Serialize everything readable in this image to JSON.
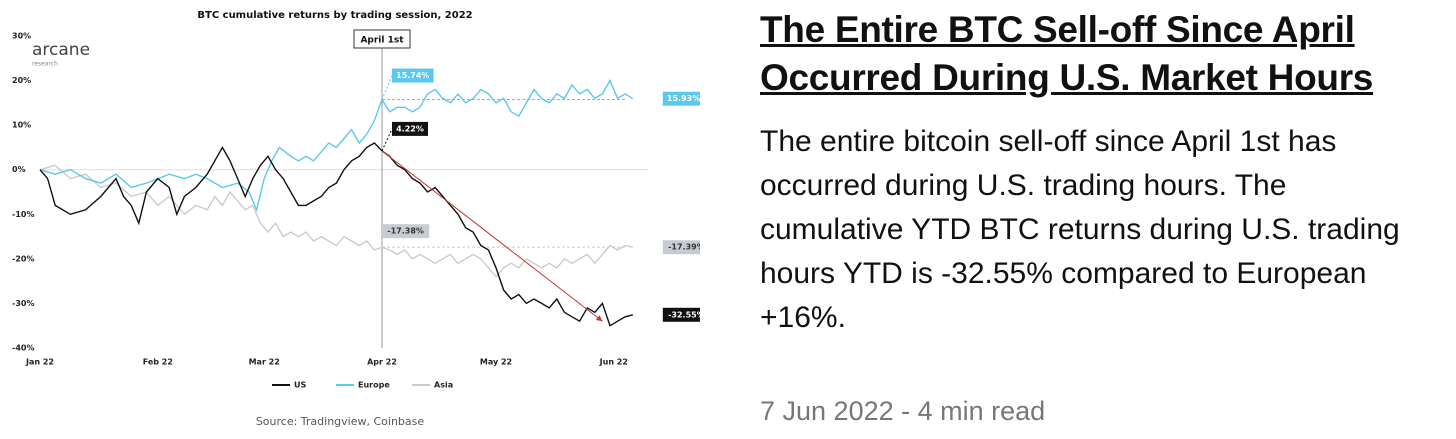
{
  "chart_data": {
    "type": "line",
    "title": "BTC cumulative returns by trading session, 2022",
    "logo": "arcane",
    "logo_subtitle": "research",
    "source": "Source: Tradingview, Coinbase",
    "xlim": [
      0,
      160
    ],
    "xticks": [
      {
        "value": 0,
        "label": "Jan 22"
      },
      {
        "value": 31,
        "label": "Feb 22"
      },
      {
        "value": 59,
        "label": "Mar 22"
      },
      {
        "value": 90,
        "label": "Apr 22"
      },
      {
        "value": 120,
        "label": "May 22"
      },
      {
        "value": 151,
        "label": "Jun 22"
      }
    ],
    "ylim": [
      -40,
      30
    ],
    "yticks": [
      {
        "value": -40,
        "label": "-40%"
      },
      {
        "value": -30,
        "label": "-30%"
      },
      {
        "value": -20,
        "label": "-20%"
      },
      {
        "value": -10,
        "label": "-10%"
      },
      {
        "value": 0,
        "label": "0%"
      },
      {
        "value": 10,
        "label": "10%"
      },
      {
        "value": 20,
        "label": "20%"
      },
      {
        "value": 30,
        "label": "30%"
      }
    ],
    "grid": false,
    "series": [
      {
        "name": "US",
        "color": "#111111",
        "x": [
          0,
          2,
          4,
          8,
          12,
          16,
          18,
          20,
          22,
          24,
          26,
          28,
          31,
          34,
          36,
          38,
          41,
          44,
          46,
          48,
          50,
          52,
          54,
          56,
          58,
          60,
          62,
          64,
          66,
          68,
          70,
          72,
          74,
          76,
          78,
          80,
          82,
          84,
          86,
          88,
          90,
          92,
          94,
          96,
          98,
          100,
          102,
          104,
          106,
          108,
          110,
          112,
          114,
          116,
          118,
          120,
          122,
          124,
          126,
          128,
          130,
          132,
          134,
          136,
          138,
          140,
          142,
          144,
          146,
          148,
          150,
          152,
          154,
          156
        ],
        "values": [
          0,
          -2,
          -8,
          -10,
          -9,
          -6,
          -4,
          -2,
          -6,
          -8,
          -12,
          -5,
          -2,
          -4,
          -10,
          -6,
          -4,
          -1,
          2,
          5,
          2,
          -2,
          -6,
          -2,
          1,
          3,
          0,
          -2,
          -5,
          -8,
          -8,
          -7,
          -6,
          -4,
          -3,
          0,
          2,
          3,
          5,
          6,
          4.22,
          3,
          1,
          0,
          -2,
          -3,
          -5,
          -4,
          -6,
          -8,
          -10,
          -13,
          -14,
          -17,
          -18,
          -22,
          -27,
          -29,
          -28,
          -30,
          -29,
          -30,
          -31,
          -29,
          -32,
          -33,
          -34,
          -31,
          -32,
          -30,
          -35,
          -34,
          -33,
          -32.55
        ]
      },
      {
        "name": "Europe",
        "color": "#5bc8ef",
        "x": [
          0,
          4,
          8,
          12,
          16,
          20,
          24,
          28,
          31,
          34,
          38,
          41,
          44,
          48,
          52,
          55,
          57,
          59,
          61,
          63,
          66,
          68,
          70,
          72,
          74,
          76,
          78,
          80,
          82,
          84,
          86,
          88,
          90,
          92,
          94,
          96,
          98,
          100,
          102,
          104,
          106,
          108,
          110,
          112,
          114,
          116,
          118,
          120,
          122,
          124,
          126,
          128,
          130,
          132,
          134,
          136,
          138,
          140,
          142,
          144,
          146,
          148,
          150,
          152,
          154,
          156
        ],
        "values": [
          0,
          -1,
          0,
          -2,
          -3,
          -1,
          -4,
          -3,
          -2,
          -1,
          -2,
          -1,
          -2,
          -4,
          -3,
          -5,
          -9,
          -2,
          2,
          5,
          3,
          2,
          3,
          2,
          4,
          6,
          5,
          7,
          9,
          6,
          8,
          11,
          15.74,
          13,
          14,
          14,
          13,
          14,
          17,
          18,
          16,
          15,
          17,
          15,
          16,
          18,
          17,
          15,
          16,
          13,
          12,
          15,
          18,
          16,
          15,
          17,
          16,
          19,
          17,
          18,
          16,
          17,
          20,
          16,
          17,
          15.93
        ]
      },
      {
        "name": "Asia",
        "color": "#c8ccd2",
        "x": [
          0,
          4,
          8,
          12,
          16,
          20,
          24,
          28,
          31,
          34,
          38,
          41,
          44,
          46,
          48,
          50,
          52,
          54,
          56,
          58,
          60,
          62,
          64,
          66,
          68,
          70,
          72,
          74,
          76,
          78,
          80,
          82,
          84,
          86,
          88,
          90,
          92,
          94,
          96,
          98,
          100,
          102,
          104,
          106,
          108,
          110,
          112,
          114,
          116,
          118,
          120,
          122,
          124,
          126,
          128,
          130,
          132,
          134,
          136,
          138,
          140,
          142,
          144,
          146,
          148,
          150,
          152,
          154,
          156
        ],
        "values": [
          0,
          1,
          -2,
          -1,
          -4,
          -3,
          -6,
          -5,
          -8,
          -6,
          -10,
          -8,
          -9,
          -6,
          -8,
          -5,
          -7,
          -9,
          -8,
          -12,
          -14,
          -12,
          -15,
          -14,
          -15,
          -14,
          -16,
          -15,
          -16,
          -17,
          -15,
          -16,
          -17,
          -16,
          -18,
          -17.38,
          -18,
          -19,
          -18,
          -20,
          -19,
          -20,
          -21,
          -20,
          -19,
          -21,
          -20,
          -19,
          -20,
          -22,
          -24,
          -22,
          -21,
          -22,
          -20,
          -21,
          -22,
          -21,
          -22,
          -20,
          -21,
          -20,
          -19,
          -21,
          -19,
          -17,
          -18,
          -17,
          -17.39
        ]
      }
    ],
    "marker": {
      "label": "April 1st",
      "x": 90
    },
    "annotations": [
      {
        "label": "15.74%",
        "x": 90,
        "y": 15.74,
        "color": "#5bc8ef"
      },
      {
        "label": "4.22%",
        "x": 90,
        "y": 4.22,
        "color": "#111111"
      },
      {
        "label": "-17.38%",
        "x": 90,
        "y": -17.38,
        "color": "#c8ccd2"
      },
      {
        "label": "15.93%",
        "x": 156,
        "y": 15.93,
        "color": "#5bc8ef"
      },
      {
        "label": "-17.39%",
        "x": 156,
        "y": -17.39,
        "color": "#c8ccd2"
      },
      {
        "label": "-32.55%",
        "x": 156,
        "y": -32.55,
        "color": "#111111"
      }
    ],
    "reference_lines": [
      {
        "y": 0,
        "x": [
          0,
          160
        ],
        "color": "#dddddd"
      },
      {
        "y": 15.74,
        "x": [
          90,
          154
        ],
        "color": "#5bc8ef"
      },
      {
        "y": -17.38,
        "x": [
          90,
          154
        ],
        "color": "#c8ccd2"
      }
    ],
    "trend_arrow": {
      "x": [
        90,
        148
      ],
      "y": [
        4.22,
        -34
      ],
      "color": "#c0392b"
    }
  },
  "article": {
    "title": "The Entire BTC Sell-off Since April Occurred During U.S. Market Hours",
    "body": "The entire bitcoin sell-off since April 1st has occurred during U.S. trading hours. The cumulative YTD BTC returns during U.S. trading hours YTD is -32.55% compared to European +16%.",
    "meta": "7 Jun 2022 - 4 min read"
  }
}
